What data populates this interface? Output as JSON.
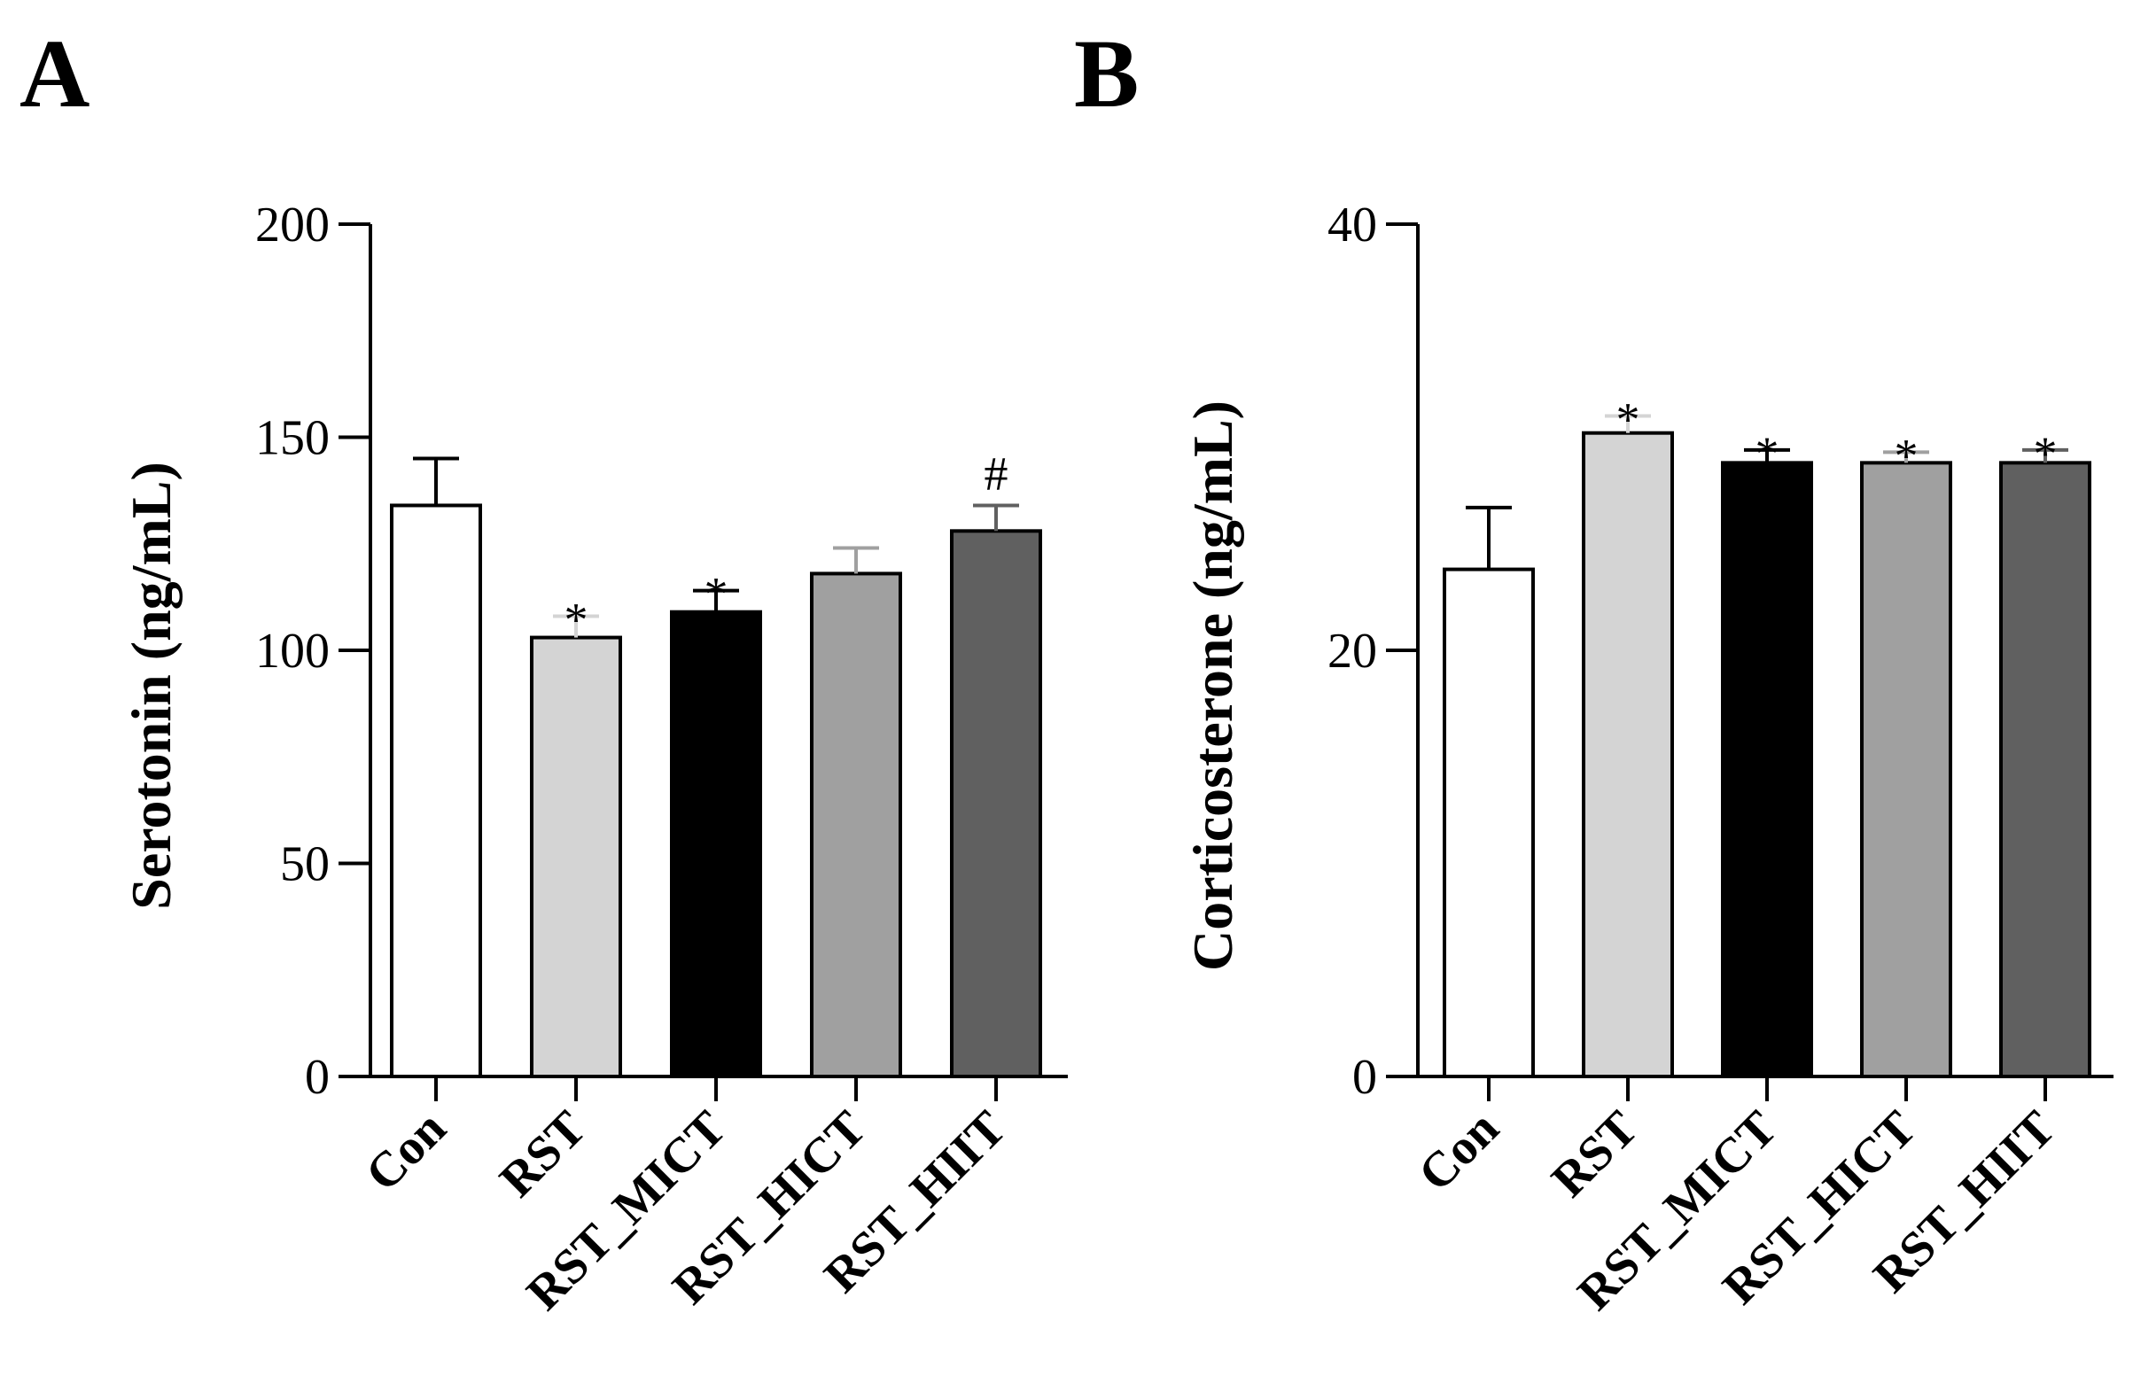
{
  "chart_data": [
    {
      "panel": "A",
      "type": "bar",
      "categories": [
        "Con",
        "RST",
        "RST_MICT",
        "RST_HICT",
        "RST_HIIT"
      ],
      "values": [
        134,
        103,
        109,
        118,
        128
      ],
      "errors": [
        11,
        5,
        5,
        6,
        6
      ],
      "annotations": [
        "",
        "*",
        "*",
        "",
        "#"
      ],
      "colors": [
        "#ffffff",
        "#d4d4d4",
        "#000000",
        "#a0a0a0",
        "#606060"
      ],
      "ylabel": "Serotonin (ng/mL)",
      "xlabel": "",
      "ylim": [
        0,
        200
      ],
      "yticks": [
        0,
        50,
        100,
        150,
        200
      ]
    },
    {
      "panel": "B",
      "type": "bar",
      "categories": [
        "Con",
        "RST",
        "RST_MICT",
        "RST_HICT",
        "RST_HIIT"
      ],
      "values": [
        23.8,
        30.2,
        28.8,
        28.8,
        28.8
      ],
      "errors": [
        2.9,
        0.8,
        0.6,
        0.5,
        0.6
      ],
      "annotations": [
        "",
        "*",
        "*",
        "*",
        "*"
      ],
      "colors": [
        "#ffffff",
        "#d4d4d4",
        "#000000",
        "#a0a0a0",
        "#606060"
      ],
      "ylabel": "Corticosterone (ng/mL)",
      "xlabel": "",
      "ylim": [
        0,
        40
      ],
      "yticks": [
        0,
        20,
        40
      ]
    }
  ]
}
